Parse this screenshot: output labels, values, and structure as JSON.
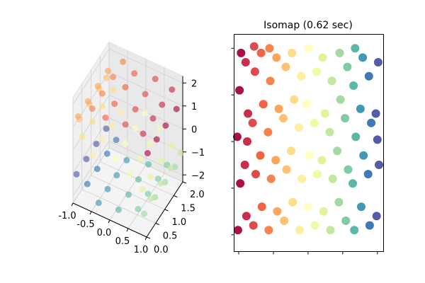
{
  "colormap": {
    "name": "Spectral",
    "stops": [
      "#9e0142",
      "#d53e4f",
      "#f46d43",
      "#fdae61",
      "#fee08b",
      "#ffffbf",
      "#e6f598",
      "#abdda4",
      "#66c2a5",
      "#3288bd",
      "#5e4fa2"
    ],
    "range": [
      -4.71,
      4.71
    ]
  },
  "chart_data": [
    {
      "type": "scatter3d",
      "title": "",
      "xlim": [
        -1.0,
        1.0
      ],
      "ylim": [
        0.0,
        2.0
      ],
      "zlim": [
        -2.3,
        2.3
      ],
      "grid": true,
      "xticks": [
        "-1.0",
        "-0.5",
        "0.0",
        "0.5",
        "1.0"
      ],
      "yticks": [
        "0.0",
        "0.5",
        "1.0",
        "1.5",
        "2.0"
      ],
      "zticks": [
        "2",
        "1",
        "0",
        "−1",
        "−2"
      ],
      "xtick_values": [
        -1.0,
        -0.5,
        0.0,
        0.5,
        1.0
      ],
      "ytick_values": [
        0.0,
        0.5,
        1.0,
        1.5,
        2.0
      ],
      "ztick_values": [
        2,
        1,
        0,
        -1,
        -2
      ],
      "point_columns": [
        "x",
        "y",
        "z",
        "color_value"
      ],
      "points": [
        [
          0.978,
          0.1,
          1.211,
          -4.5
        ],
        [
          0.978,
          0.6,
          1.211,
          -4.5
        ],
        [
          0.978,
          1.1,
          1.211,
          -4.5
        ],
        [
          0.978,
          1.7,
          1.211,
          -4.5
        ],
        [
          0.757,
          0.3,
          1.654,
          -4.0
        ],
        [
          0.757,
          0.85,
          1.654,
          -4.0
        ],
        [
          0.757,
          1.35,
          1.654,
          -4.0
        ],
        [
          0.757,
          1.9,
          1.654,
          -4.0
        ],
        [
          0.351,
          0.15,
          1.936,
          -3.5
        ],
        [
          0.351,
          0.7,
          1.936,
          -3.5
        ],
        [
          0.351,
          1.25,
          1.936,
          -3.5
        ],
        [
          0.351,
          1.8,
          1.936,
          -3.5
        ],
        [
          -0.141,
          0.05,
          1.99,
          -3.0
        ],
        [
          -0.141,
          0.55,
          1.99,
          -3.0
        ],
        [
          -0.141,
          1.15,
          1.99,
          -3.0
        ],
        [
          -0.141,
          1.65,
          1.99,
          -3.0
        ],
        [
          -0.598,
          0.25,
          1.801,
          -2.5
        ],
        [
          -0.598,
          0.8,
          1.801,
          -2.5
        ],
        [
          -0.598,
          1.4,
          1.801,
          -2.5
        ],
        [
          -0.598,
          1.95,
          1.801,
          -2.5
        ],
        [
          -0.909,
          0.1,
          1.416,
          -2.0
        ],
        [
          -0.909,
          0.65,
          1.416,
          -2.0
        ],
        [
          -0.909,
          1.2,
          1.416,
          -2.0
        ],
        [
          -0.909,
          1.75,
          1.416,
          -2.0
        ],
        [
          -0.997,
          0.35,
          0.929,
          -1.5
        ],
        [
          -0.997,
          0.9,
          0.929,
          -1.5
        ],
        [
          -0.997,
          1.45,
          0.929,
          -1.5
        ],
        [
          -0.997,
          1.85,
          0.929,
          -1.5
        ],
        [
          -0.841,
          0.2,
          0.46,
          -1.0
        ],
        [
          -0.841,
          0.75,
          0.46,
          -1.0
        ],
        [
          -0.841,
          1.3,
          0.46,
          -1.0
        ],
        [
          -0.841,
          1.9,
          0.46,
          -1.0
        ],
        [
          -0.479,
          0.05,
          0.122,
          -0.5
        ],
        [
          -0.479,
          0.6,
          0.122,
          -0.5
        ],
        [
          -0.479,
          1.1,
          0.122,
          -0.5
        ],
        [
          -0.479,
          1.6,
          0.122,
          -0.5
        ],
        [
          0.0,
          0.3,
          0.0,
          0.0
        ],
        [
          0.0,
          0.85,
          0.0,
          0.0
        ],
        [
          0.0,
          1.4,
          0.0,
          0.0
        ],
        [
          0.0,
          1.95,
          0.0,
          0.0
        ],
        [
          0.479,
          0.15,
          -0.122,
          0.5
        ],
        [
          0.479,
          0.7,
          -0.122,
          0.5
        ],
        [
          0.479,
          1.25,
          -0.122,
          0.5
        ],
        [
          0.479,
          1.8,
          -0.122,
          0.5
        ],
        [
          0.841,
          0.1,
          -0.46,
          1.0
        ],
        [
          0.841,
          0.55,
          -0.46,
          1.0
        ],
        [
          0.841,
          1.15,
          -0.46,
          1.0
        ],
        [
          0.841,
          1.7,
          -0.46,
          1.0
        ],
        [
          0.997,
          0.25,
          -0.929,
          1.5
        ],
        [
          0.997,
          0.8,
          -0.929,
          1.5
        ],
        [
          0.997,
          1.35,
          -0.929,
          1.5
        ],
        [
          0.997,
          1.9,
          -0.929,
          1.5
        ],
        [
          0.909,
          0.05,
          -1.416,
          2.0
        ],
        [
          0.909,
          0.65,
          -1.416,
          2.0
        ],
        [
          0.909,
          1.2,
          -1.416,
          2.0
        ],
        [
          0.909,
          1.75,
          -1.416,
          2.0
        ],
        [
          0.598,
          0.35,
          -1.801,
          2.5
        ],
        [
          0.598,
          0.9,
          -1.801,
          2.5
        ],
        [
          0.598,
          1.45,
          -1.801,
          2.5
        ],
        [
          0.598,
          1.95,
          -1.801,
          2.5
        ],
        [
          0.141,
          0.2,
          -1.99,
          3.0
        ],
        [
          0.141,
          0.75,
          -1.99,
          3.0
        ],
        [
          0.141,
          1.3,
          -1.99,
          3.0
        ],
        [
          0.141,
          1.85,
          -1.99,
          3.0
        ],
        [
          -0.351,
          0.1,
          -1.936,
          3.5
        ],
        [
          -0.351,
          0.6,
          -1.936,
          3.5
        ],
        [
          -0.351,
          1.1,
          -1.936,
          3.5
        ],
        [
          -0.351,
          1.65,
          -1.936,
          3.5
        ],
        [
          -0.757,
          0.3,
          -1.654,
          4.0
        ],
        [
          -0.757,
          0.85,
          -1.654,
          4.0
        ],
        [
          -0.757,
          1.4,
          -1.654,
          4.0
        ],
        [
          -0.757,
          1.9,
          -1.654,
          4.0
        ],
        [
          -0.978,
          0.15,
          -1.211,
          4.5
        ],
        [
          -0.978,
          0.7,
          -1.211,
          4.5
        ],
        [
          -0.978,
          1.25,
          -1.211,
          4.5
        ],
        [
          -0.978,
          1.8,
          -1.211,
          4.5
        ]
      ]
    },
    {
      "type": "scatter",
      "title": "Isomap (0.62 sec)",
      "xlim": [
        -4.8,
        4.9
      ],
      "ylim": [
        -0.18,
        2.15
      ],
      "grid": false,
      "xtick_values": [
        -4.5,
        -2.25,
        0,
        2.25,
        4.5
      ],
      "ytick_values": [
        0,
        0.5,
        1,
        1.5,
        2
      ],
      "point_columns": [
        "x",
        "y",
        "color_value"
      ],
      "points": [
        [
          -4.55,
          0.05,
          -4.5
        ],
        [
          -4.4,
          0.55,
          -4.5
        ],
        [
          -4.6,
          1.05,
          -4.5
        ],
        [
          -4.45,
          1.55,
          -4.5
        ],
        [
          -4.35,
          1.95,
          -4.5
        ],
        [
          -4.0,
          0.2,
          -4.0
        ],
        [
          -4.1,
          0.75,
          -4.0
        ],
        [
          -3.9,
          1.3,
          -4.0
        ],
        [
          -4.05,
          1.85,
          -4.0
        ],
        [
          -3.95,
          1.0,
          -4.0
        ],
        [
          -3.55,
          0.1,
          -3.5
        ],
        [
          -3.4,
          0.65,
          -3.5
        ],
        [
          -3.6,
          1.2,
          -3.5
        ],
        [
          -3.45,
          1.75,
          -3.5
        ],
        [
          -3.5,
          2.02,
          -3.5
        ],
        [
          -3.0,
          0.3,
          -3.0
        ],
        [
          -3.1,
          0.85,
          -3.0
        ],
        [
          -2.9,
          1.4,
          -3.0
        ],
        [
          -3.05,
          1.95,
          -3.0
        ],
        [
          -2.55,
          0.05,
          -2.5
        ],
        [
          -2.4,
          0.6,
          -2.5
        ],
        [
          -2.6,
          1.1,
          -2.5
        ],
        [
          -2.45,
          1.65,
          -2.5
        ],
        [
          -2.5,
          2.0,
          -2.5
        ],
        [
          -2.0,
          0.25,
          -2.0
        ],
        [
          -2.1,
          0.8,
          -2.0
        ],
        [
          -1.9,
          1.35,
          -2.0
        ],
        [
          -2.05,
          1.9,
          -2.0
        ],
        [
          -1.55,
          0.15,
          -1.5
        ],
        [
          -1.4,
          0.7,
          -1.5
        ],
        [
          -1.6,
          1.25,
          -1.5
        ],
        [
          -1.45,
          1.8,
          -1.5
        ],
        [
          -1.0,
          0.35,
          -1.0
        ],
        [
          -1.1,
          0.9,
          -1.0
        ],
        [
          -0.9,
          1.45,
          -1.0
        ],
        [
          -1.05,
          1.95,
          -1.0
        ],
        [
          -0.55,
          0.05,
          -0.5
        ],
        [
          -0.4,
          0.6,
          -0.5
        ],
        [
          -0.6,
          1.15,
          -0.5
        ],
        [
          -0.45,
          1.7,
          -0.5
        ],
        [
          0.0,
          0.3,
          0.0
        ],
        [
          0.1,
          0.85,
          0.0
        ],
        [
          -0.1,
          1.4,
          0.0
        ],
        [
          0.05,
          2.0,
          0.0
        ],
        [
          0.45,
          0.1,
          0.5
        ],
        [
          0.6,
          0.65,
          0.5
        ],
        [
          0.4,
          1.2,
          0.5
        ],
        [
          0.55,
          1.75,
          0.5
        ],
        [
          1.0,
          0.25,
          1.0
        ],
        [
          0.9,
          0.8,
          1.0
        ],
        [
          1.1,
          1.3,
          1.0
        ],
        [
          0.95,
          1.9,
          1.0
        ],
        [
          1.45,
          0.05,
          1.5
        ],
        [
          1.6,
          0.6,
          1.5
        ],
        [
          1.4,
          1.1,
          1.5
        ],
        [
          1.55,
          1.65,
          1.5
        ],
        [
          2.0,
          0.35,
          2.0
        ],
        [
          1.9,
          0.9,
          2.0
        ],
        [
          2.1,
          1.45,
          2.0
        ],
        [
          2.05,
          1.95,
          2.0
        ],
        [
          2.45,
          0.15,
          2.5
        ],
        [
          2.6,
          0.7,
          2.5
        ],
        [
          2.4,
          1.25,
          2.5
        ],
        [
          2.55,
          1.8,
          2.5
        ],
        [
          3.0,
          0.05,
          3.0
        ],
        [
          2.9,
          0.55,
          3.0
        ],
        [
          3.1,
          1.05,
          3.0
        ],
        [
          2.95,
          1.6,
          3.0
        ],
        [
          3.05,
          2.0,
          3.0
        ],
        [
          3.45,
          0.3,
          3.5
        ],
        [
          3.6,
          0.85,
          3.5
        ],
        [
          3.4,
          1.35,
          3.5
        ],
        [
          3.55,
          1.9,
          3.5
        ],
        [
          4.0,
          0.1,
          4.0
        ],
        [
          3.9,
          0.65,
          4.0
        ],
        [
          4.1,
          1.2,
          4.0
        ],
        [
          3.95,
          1.7,
          4.0
        ],
        [
          4.45,
          0.2,
          4.5
        ],
        [
          4.6,
          0.75,
          4.5
        ],
        [
          4.4,
          1.3,
          4.5
        ],
        [
          4.55,
          1.85,
          4.5
        ],
        [
          4.5,
          1.02,
          4.5
        ]
      ]
    }
  ]
}
